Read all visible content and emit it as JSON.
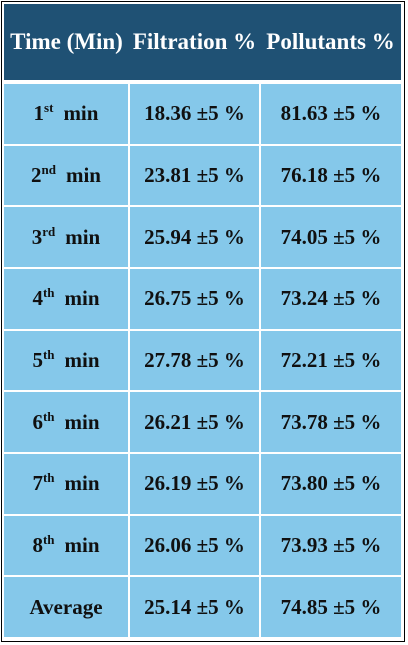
{
  "table": {
    "headers": [
      "Time (Min)",
      "Filtration %",
      "Pollutants %"
    ],
    "rows": [
      {
        "num": "1",
        "suffix": "st",
        "unit": "min",
        "filtration": "18.36 ±5 %",
        "pollutants": "81.63 ±5 %"
      },
      {
        "num": "2",
        "suffix": "nd",
        "unit": "min",
        "filtration": "23.81 ±5 %",
        "pollutants": "76.18 ±5 %"
      },
      {
        "num": "3",
        "suffix": "rd",
        "unit": "min",
        "filtration": "25.94 ±5 %",
        "pollutants": "74.05 ±5 %"
      },
      {
        "num": "4",
        "suffix": "th",
        "unit": "min",
        "filtration": "26.75 ±5 %",
        "pollutants": "73.24 ±5 %"
      },
      {
        "num": "5",
        "suffix": "th",
        "unit": "min",
        "filtration": "27.78 ±5 %",
        "pollutants": "72.21 ±5 %"
      },
      {
        "num": "6",
        "suffix": "th",
        "unit": "min",
        "filtration": "26.21 ±5 %",
        "pollutants": "73.78 ±5 %"
      },
      {
        "num": "7",
        "suffix": "th",
        "unit": "min",
        "filtration": "26.19 ±5 %",
        "pollutants": "73.80 ±5 %"
      },
      {
        "num": "8",
        "suffix": "th",
        "unit": "min",
        "filtration": "26.06 ±5 %",
        "pollutants": "73.93 ±5 %"
      }
    ],
    "average": {
      "label": "Average",
      "filtration": "25.14 ±5 %",
      "pollutants": "74.85 ±5 %"
    }
  },
  "colors": {
    "header_bg": "#1f5174",
    "header_text": "#ffffff",
    "cell_bg": "#85c8ea",
    "cell_text": "#101010",
    "grid": "#ffffff",
    "frame": "#000000"
  }
}
